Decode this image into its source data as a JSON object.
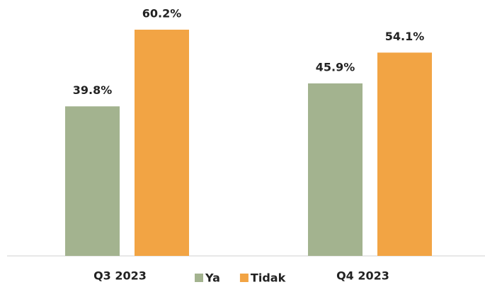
{
  "chart_data": {
    "type": "bar",
    "categories": [
      "Q3 2023",
      "Q4 2023"
    ],
    "series": [
      {
        "name": "Ya",
        "color": "#a3b38f",
        "values": [
          39.8,
          45.9
        ],
        "value_labels": [
          "39.8%",
          "45.9%"
        ]
      },
      {
        "name": "Tidak",
        "color": "#f2a444",
        "values": [
          60.2,
          54.1
        ],
        "value_labels": [
          "60.2%",
          "54.1%"
        ]
      }
    ],
    "legend": "bottom"
  }
}
